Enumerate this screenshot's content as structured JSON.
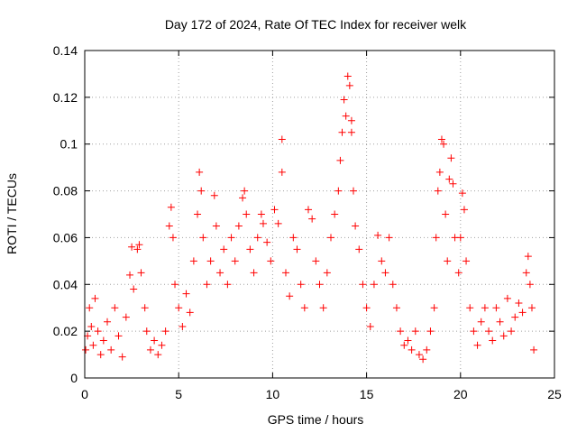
{
  "chart_data": {
    "type": "scatter",
    "title": "Day 172 of 2024, Rate Of TEC Index for receiver welk",
    "xlabel": "GPS time / hours",
    "ylabel": "ROTI / TECUs",
    "xlim": [
      0,
      25
    ],
    "ylim": [
      0,
      0.14
    ],
    "xticks": [
      0,
      5,
      10,
      15,
      20,
      25
    ],
    "xtick_labels": [
      "0",
      "5",
      "10",
      "15",
      "20",
      "25"
    ],
    "yticks": [
      0,
      0.02,
      0.04,
      0.06,
      0.08,
      0.1,
      0.12,
      0.14
    ],
    "ytick_labels": [
      "0",
      "0.02",
      "0.04",
      "0.06",
      "0.08",
      "0.1",
      "0.12",
      "0.14"
    ],
    "grid": true,
    "marker": "+",
    "color": "#ff0000",
    "series": [
      {
        "name": "welk",
        "points": [
          [
            0.05,
            0.012
          ],
          [
            0.15,
            0.018
          ],
          [
            0.25,
            0.03
          ],
          [
            0.35,
            0.022
          ],
          [
            0.45,
            0.014
          ],
          [
            0.55,
            0.034
          ],
          [
            0.7,
            0.02
          ],
          [
            0.85,
            0.01
          ],
          [
            1.0,
            0.016
          ],
          [
            1.2,
            0.024
          ],
          [
            1.4,
            0.012
          ],
          [
            1.6,
            0.03
          ],
          [
            1.8,
            0.018
          ],
          [
            2.0,
            0.009
          ],
          [
            2.2,
            0.026
          ],
          [
            2.4,
            0.044
          ],
          [
            2.5,
            0.056
          ],
          [
            2.6,
            0.038
          ],
          [
            2.8,
            0.055
          ],
          [
            2.9,
            0.057
          ],
          [
            3.0,
            0.045
          ],
          [
            3.2,
            0.03
          ],
          [
            3.3,
            0.02
          ],
          [
            3.5,
            0.012
          ],
          [
            3.7,
            0.016
          ],
          [
            3.9,
            0.01
          ],
          [
            4.1,
            0.014
          ],
          [
            4.3,
            0.02
          ],
          [
            4.5,
            0.065
          ],
          [
            4.6,
            0.073
          ],
          [
            4.7,
            0.06
          ],
          [
            4.8,
            0.04
          ],
          [
            5.0,
            0.03
          ],
          [
            5.2,
            0.022
          ],
          [
            5.4,
            0.036
          ],
          [
            5.6,
            0.028
          ],
          [
            5.8,
            0.05
          ],
          [
            6.0,
            0.07
          ],
          [
            6.1,
            0.088
          ],
          [
            6.2,
            0.08
          ],
          [
            6.3,
            0.06
          ],
          [
            6.5,
            0.04
          ],
          [
            6.7,
            0.05
          ],
          [
            6.9,
            0.078
          ],
          [
            7.0,
            0.065
          ],
          [
            7.2,
            0.045
          ],
          [
            7.4,
            0.055
          ],
          [
            7.6,
            0.04
          ],
          [
            7.8,
            0.06
          ],
          [
            8.0,
            0.05
          ],
          [
            8.2,
            0.065
          ],
          [
            8.4,
            0.077
          ],
          [
            8.5,
            0.08
          ],
          [
            8.6,
            0.07
          ],
          [
            8.8,
            0.055
          ],
          [
            9.0,
            0.045
          ],
          [
            9.2,
            0.06
          ],
          [
            9.4,
            0.07
          ],
          [
            9.5,
            0.066
          ],
          [
            9.7,
            0.058
          ],
          [
            9.9,
            0.05
          ],
          [
            10.1,
            0.072
          ],
          [
            10.3,
            0.066
          ],
          [
            10.5,
            0.102
          ],
          [
            10.5,
            0.088
          ],
          [
            10.7,
            0.045
          ],
          [
            10.9,
            0.035
          ],
          [
            11.1,
            0.06
          ],
          [
            11.3,
            0.055
          ],
          [
            11.5,
            0.04
          ],
          [
            11.7,
            0.03
          ],
          [
            11.9,
            0.072
          ],
          [
            12.1,
            0.068
          ],
          [
            12.3,
            0.05
          ],
          [
            12.5,
            0.04
          ],
          [
            12.7,
            0.03
          ],
          [
            12.9,
            0.045
          ],
          [
            13.1,
            0.06
          ],
          [
            13.3,
            0.07
          ],
          [
            13.5,
            0.08
          ],
          [
            13.6,
            0.093
          ],
          [
            13.7,
            0.105
          ],
          [
            13.8,
            0.119
          ],
          [
            13.9,
            0.112
          ],
          [
            14.0,
            0.129
          ],
          [
            14.1,
            0.125
          ],
          [
            14.2,
            0.11
          ],
          [
            14.2,
            0.105
          ],
          [
            14.3,
            0.08
          ],
          [
            14.4,
            0.065
          ],
          [
            14.6,
            0.055
          ],
          [
            14.8,
            0.04
          ],
          [
            15.0,
            0.03
          ],
          [
            15.2,
            0.022
          ],
          [
            15.4,
            0.04
          ],
          [
            15.6,
            0.061
          ],
          [
            15.8,
            0.05
          ],
          [
            16.0,
            0.045
          ],
          [
            16.2,
            0.06
          ],
          [
            16.4,
            0.04
          ],
          [
            16.6,
            0.03
          ],
          [
            16.8,
            0.02
          ],
          [
            17.0,
            0.014
          ],
          [
            17.2,
            0.016
          ],
          [
            17.4,
            0.012
          ],
          [
            17.6,
            0.02
          ],
          [
            17.8,
            0.01
          ],
          [
            18.0,
            0.008
          ],
          [
            18.2,
            0.012
          ],
          [
            18.4,
            0.02
          ],
          [
            18.6,
            0.03
          ],
          [
            18.7,
            0.06
          ],
          [
            18.8,
            0.08
          ],
          [
            18.9,
            0.088
          ],
          [
            19.0,
            0.102
          ],
          [
            19.1,
            0.1
          ],
          [
            19.2,
            0.07
          ],
          [
            19.3,
            0.05
          ],
          [
            19.4,
            0.085
          ],
          [
            19.5,
            0.094
          ],
          [
            19.6,
            0.083
          ],
          [
            19.7,
            0.06
          ],
          [
            19.9,
            0.045
          ],
          [
            20.0,
            0.06
          ],
          [
            20.1,
            0.079
          ],
          [
            20.2,
            0.072
          ],
          [
            20.3,
            0.05
          ],
          [
            20.5,
            0.03
          ],
          [
            20.7,
            0.02
          ],
          [
            20.9,
            0.014
          ],
          [
            21.1,
            0.024
          ],
          [
            21.3,
            0.03
          ],
          [
            21.5,
            0.02
          ],
          [
            21.7,
            0.016
          ],
          [
            21.9,
            0.03
          ],
          [
            22.1,
            0.024
          ],
          [
            22.3,
            0.018
          ],
          [
            22.5,
            0.034
          ],
          [
            22.7,
            0.02
          ],
          [
            22.9,
            0.026
          ],
          [
            23.1,
            0.032
          ],
          [
            23.3,
            0.028
          ],
          [
            23.5,
            0.045
          ],
          [
            23.6,
            0.052
          ],
          [
            23.7,
            0.04
          ],
          [
            23.8,
            0.03
          ],
          [
            23.9,
            0.012
          ]
        ]
      }
    ]
  }
}
